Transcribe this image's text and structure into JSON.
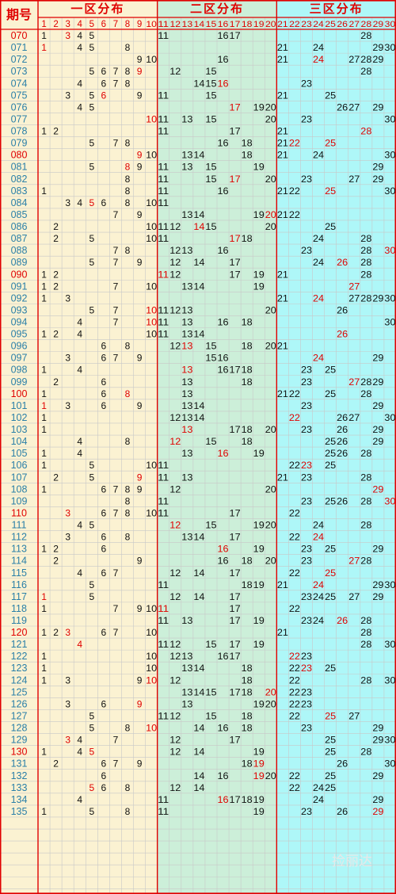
{
  "header": {
    "period_label": "期号",
    "zones": [
      {
        "label": "一区分布",
        "from": 1,
        "to": 10
      },
      {
        "label": "二区分布",
        "from": 11,
        "to": 20
      },
      {
        "label": "三区分布",
        "from": 21,
        "to": 30
      }
    ],
    "numbers": [
      "1",
      "2",
      "3",
      "4",
      "5",
      "6",
      "7",
      "8",
      "9",
      "10",
      "11",
      "12",
      "13",
      "14",
      "15",
      "16",
      "17",
      "18",
      "19",
      "20",
      "21",
      "22",
      "23",
      "24",
      "25",
      "26",
      "27",
      "28",
      "29",
      "30"
    ]
  },
  "colors": {
    "frame": "#E00000",
    "zone1_bg": "#FBF2D2",
    "zone2_bg": "#CCEFD9",
    "zone3_bg": "#AEF7F8",
    "period_bg": "#FBF2D2",
    "grid": "#C8C8C8",
    "header_text": "#E00000",
    "period_text_normal": "#2A7FA8",
    "period_text_highlight": "#E00000",
    "number_text": "#111111",
    "number_highlight": "#E00000"
  },
  "watermark": "捡丽达",
  "rows": [
    {
      "period": "070",
      "hl": true,
      "n": [
        1,
        3,
        4,
        5,
        11,
        16,
        17,
        28
      ],
      "r": [
        3
      ]
    },
    {
      "period": "071",
      "hl": false,
      "n": [
        1,
        4,
        5,
        8,
        21,
        24,
        29,
        30
      ],
      "r": [
        1
      ]
    },
    {
      "period": "072",
      "hl": false,
      "n": [
        9,
        10,
        16,
        21,
        24,
        27,
        28,
        29
      ],
      "r": [
        24
      ]
    },
    {
      "period": "073",
      "hl": false,
      "n": [
        5,
        6,
        7,
        8,
        9,
        12,
        15,
        28
      ],
      "r": [
        9
      ]
    },
    {
      "period": "074",
      "hl": false,
      "n": [
        4,
        6,
        7,
        8,
        14,
        15,
        16,
        23
      ],
      "r": [
        16
      ]
    },
    {
      "period": "075",
      "hl": false,
      "n": [
        3,
        5,
        6,
        9,
        11,
        15,
        21,
        25
      ],
      "r": [
        6
      ]
    },
    {
      "period": "076",
      "hl": false,
      "n": [
        4,
        5,
        17,
        19,
        20,
        26,
        27,
        29
      ],
      "r": [
        17
      ]
    },
    {
      "period": "077",
      "hl": false,
      "n": [
        10,
        11,
        13,
        15,
        20,
        23,
        30
      ],
      "r": [
        10
      ]
    },
    {
      "period": "078",
      "hl": false,
      "n": [
        1,
        2,
        11,
        17,
        21,
        28
      ],
      "r": [
        28
      ]
    },
    {
      "period": "079",
      "hl": false,
      "n": [
        5,
        7,
        8,
        16,
        18,
        21,
        22,
        25
      ],
      "r": [
        22,
        25
      ]
    },
    {
      "period": "080",
      "hl": true,
      "n": [
        9,
        10,
        13,
        14,
        18,
        21,
        24,
        30
      ],
      "r": [
        9
      ]
    },
    {
      "period": "081",
      "hl": false,
      "n": [
        5,
        8,
        9,
        11,
        13,
        15,
        19,
        29
      ],
      "r": [
        8
      ]
    },
    {
      "period": "082",
      "hl": false,
      "n": [
        8,
        11,
        15,
        17,
        20,
        23,
        27,
        29
      ],
      "r": [
        17
      ]
    },
    {
      "period": "083",
      "hl": false,
      "n": [
        1,
        8,
        11,
        16,
        21,
        22,
        25,
        30
      ],
      "r": [
        25
      ]
    },
    {
      "period": "084",
      "hl": false,
      "n": [
        3,
        4,
        5,
        6,
        8,
        10,
        11
      ],
      "r": [
        5
      ]
    },
    {
      "period": "085",
      "hl": false,
      "n": [
        7,
        9,
        13,
        14,
        19,
        20,
        21,
        22
      ],
      "r": [
        20
      ]
    },
    {
      "period": "086",
      "hl": false,
      "n": [
        2,
        10,
        11,
        12,
        14,
        15,
        20,
        25
      ],
      "r": [
        14
      ]
    },
    {
      "period": "087",
      "hl": false,
      "n": [
        2,
        5,
        10,
        11,
        17,
        18,
        24,
        28
      ],
      "r": [
        17
      ]
    },
    {
      "period": "088",
      "hl": false,
      "n": [
        7,
        8,
        12,
        13,
        16,
        23,
        28,
        30
      ],
      "r": [
        30
      ]
    },
    {
      "period": "089",
      "hl": false,
      "n": [
        5,
        7,
        9,
        12,
        14,
        17,
        24,
        26,
        28
      ],
      "r": [
        26
      ]
    },
    {
      "period": "090",
      "hl": true,
      "n": [
        1,
        2,
        11,
        12,
        17,
        19,
        21,
        28
      ],
      "r": [
        11
      ]
    },
    {
      "period": "091",
      "hl": false,
      "n": [
        1,
        2,
        7,
        10,
        13,
        14,
        19,
        27
      ],
      "r": [
        27
      ]
    },
    {
      "period": "092",
      "hl": false,
      "n": [
        1,
        3,
        21,
        24,
        27,
        28,
        29,
        30
      ],
      "r": [
        24
      ]
    },
    {
      "period": "093",
      "hl": false,
      "n": [
        5,
        7,
        10,
        11,
        12,
        13,
        20,
        26
      ],
      "r": [
        10
      ]
    },
    {
      "period": "094",
      "hl": false,
      "n": [
        4,
        7,
        10,
        11,
        13,
        16,
        18,
        30
      ],
      "r": [
        10
      ]
    },
    {
      "period": "095",
      "hl": false,
      "n": [
        1,
        2,
        4,
        10,
        11,
        13,
        14,
        26
      ],
      "r": [
        26
      ]
    },
    {
      "period": "096",
      "hl": false,
      "n": [
        6,
        8,
        12,
        13,
        15,
        18,
        20,
        21
      ],
      "r": [
        13
      ]
    },
    {
      "period": "097",
      "hl": false,
      "n": [
        3,
        6,
        7,
        9,
        15,
        16,
        24,
        29
      ],
      "r": [
        24
      ]
    },
    {
      "period": "098",
      "hl": false,
      "n": [
        1,
        4,
        13,
        16,
        17,
        18,
        23,
        25
      ],
      "r": [
        13
      ]
    },
    {
      "period": "099",
      "hl": false,
      "n": [
        2,
        6,
        13,
        18,
        23,
        27,
        28,
        29
      ],
      "r": [
        27
      ]
    },
    {
      "period": "100",
      "hl": true,
      "n": [
        1,
        6,
        8,
        13,
        21,
        22,
        25,
        28
      ],
      "r": [
        8
      ]
    },
    {
      "period": "101",
      "hl": false,
      "n": [
        1,
        3,
        6,
        9,
        13,
        14,
        23,
        29
      ],
      "r": [
        1
      ]
    },
    {
      "period": "102",
      "hl": false,
      "n": [
        1,
        12,
        13,
        14,
        22,
        26,
        27,
        30
      ],
      "r": [
        22
      ]
    },
    {
      "period": "103",
      "hl": false,
      "n": [
        1,
        13,
        17,
        18,
        20,
        23,
        26,
        29
      ],
      "r": [
        13
      ]
    },
    {
      "period": "104",
      "hl": false,
      "n": [
        4,
        8,
        12,
        15,
        18,
        25,
        26,
        29
      ],
      "r": [
        12
      ]
    },
    {
      "period": "105",
      "hl": false,
      "n": [
        1,
        4,
        13,
        16,
        19,
        25,
        26,
        28
      ],
      "r": [
        16
      ]
    },
    {
      "period": "106",
      "hl": false,
      "n": [
        1,
        5,
        10,
        11,
        22,
        23,
        25
      ],
      "r": [
        23
      ]
    },
    {
      "period": "107",
      "hl": false,
      "n": [
        2,
        5,
        9,
        11,
        13,
        21,
        23,
        28
      ],
      "r": [
        9
      ]
    },
    {
      "period": "108",
      "hl": false,
      "n": [
        1,
        6,
        7,
        8,
        9,
        12,
        20,
        29
      ],
      "r": [
        29
      ]
    },
    {
      "period": "109",
      "hl": false,
      "n": [
        8,
        11,
        23,
        25,
        26,
        28,
        30
      ],
      "r": [
        30
      ]
    },
    {
      "period": "110",
      "hl": true,
      "n": [
        3,
        6,
        7,
        8,
        10,
        11,
        17,
        22
      ],
      "r": [
        3
      ]
    },
    {
      "period": "111",
      "hl": false,
      "n": [
        4,
        5,
        12,
        15,
        19,
        20,
        24,
        28
      ],
      "r": [
        12
      ]
    },
    {
      "period": "112",
      "hl": false,
      "n": [
        3,
        6,
        8,
        13,
        14,
        17,
        22,
        24
      ],
      "r": [
        24
      ]
    },
    {
      "period": "113",
      "hl": false,
      "n": [
        1,
        2,
        6,
        16,
        19,
        23,
        25,
        29
      ],
      "r": [
        16
      ]
    },
    {
      "period": "114",
      "hl": false,
      "n": [
        2,
        9,
        16,
        18,
        20,
        23,
        27,
        28
      ],
      "r": [
        27
      ]
    },
    {
      "period": "115",
      "hl": false,
      "n": [
        4,
        6,
        7,
        12,
        14,
        17,
        22,
        25
      ],
      "r": [
        25
      ]
    },
    {
      "period": "116",
      "hl": false,
      "n": [
        5,
        11,
        18,
        19,
        21,
        24,
        29,
        30
      ],
      "r": [
        24
      ]
    },
    {
      "period": "117",
      "hl": false,
      "n": [
        1,
        5,
        12,
        14,
        17,
        23,
        24,
        25,
        27,
        29
      ],
      "r": [
        1
      ]
    },
    {
      "period": "118",
      "hl": false,
      "n": [
        1,
        7,
        9,
        10,
        11,
        17,
        22
      ],
      "r": [
        11
      ]
    },
    {
      "period": "119",
      "hl": false,
      "n": [
        11,
        13,
        17,
        19,
        23,
        24,
        26,
        28
      ],
      "r": [
        26
      ]
    },
    {
      "period": "120",
      "hl": true,
      "n": [
        1,
        2,
        3,
        6,
        7,
        10,
        21,
        28
      ],
      "r": [
        3
      ]
    },
    {
      "period": "121",
      "hl": false,
      "n": [
        4,
        11,
        12,
        15,
        17,
        19,
        28,
        30
      ],
      "r": [
        4
      ]
    },
    {
      "period": "122",
      "hl": false,
      "n": [
        1,
        10,
        12,
        13,
        16,
        17,
        22,
        23
      ],
      "r": [
        22
      ]
    },
    {
      "period": "123",
      "hl": false,
      "n": [
        1,
        10,
        13,
        14,
        18,
        22,
        23,
        25
      ],
      "r": [
        23
      ]
    },
    {
      "period": "124",
      "hl": false,
      "n": [
        1,
        3,
        9,
        10,
        12,
        18,
        22,
        28,
        30
      ],
      "r": [
        10
      ]
    },
    {
      "period": "125",
      "hl": false,
      "n": [
        13,
        14,
        15,
        17,
        18,
        20,
        22,
        23
      ],
      "r": [
        20
      ]
    },
    {
      "period": "126",
      "hl": false,
      "n": [
        3,
        6,
        9,
        13,
        19,
        20,
        22,
        23
      ],
      "r": [
        9
      ]
    },
    {
      "period": "127",
      "hl": false,
      "n": [
        5,
        11,
        12,
        15,
        18,
        22,
        25,
        27
      ],
      "r": [
        25
      ]
    },
    {
      "period": "128",
      "hl": false,
      "n": [
        5,
        8,
        10,
        14,
        16,
        18,
        23,
        29
      ],
      "r": [
        10
      ]
    },
    {
      "period": "129",
      "hl": false,
      "n": [
        3,
        4,
        7,
        12,
        17,
        25,
        29,
        30
      ],
      "r": [
        3
      ]
    },
    {
      "period": "130",
      "hl": true,
      "n": [
        1,
        4,
        5,
        12,
        14,
        19,
        25,
        28
      ],
      "r": [
        5
      ]
    },
    {
      "period": "131",
      "hl": false,
      "n": [
        2,
        6,
        7,
        9,
        18,
        19,
        26,
        30
      ],
      "r": [
        19
      ]
    },
    {
      "period": "132",
      "hl": false,
      "n": [
        6,
        14,
        16,
        19,
        20,
        22,
        25,
        29
      ],
      "r": [
        19
      ]
    },
    {
      "period": "133",
      "hl": false,
      "n": [
        5,
        6,
        8,
        12,
        14,
        22,
        24,
        25
      ],
      "r": [
        5
      ]
    },
    {
      "period": "134",
      "hl": false,
      "n": [
        4,
        11,
        16,
        17,
        18,
        19,
        24,
        29
      ],
      "r": [
        16
      ]
    },
    {
      "period": "135",
      "hl": false,
      "n": [
        1,
        5,
        8,
        11,
        19,
        23,
        26,
        29
      ],
      "r": [
        29
      ]
    }
  ]
}
